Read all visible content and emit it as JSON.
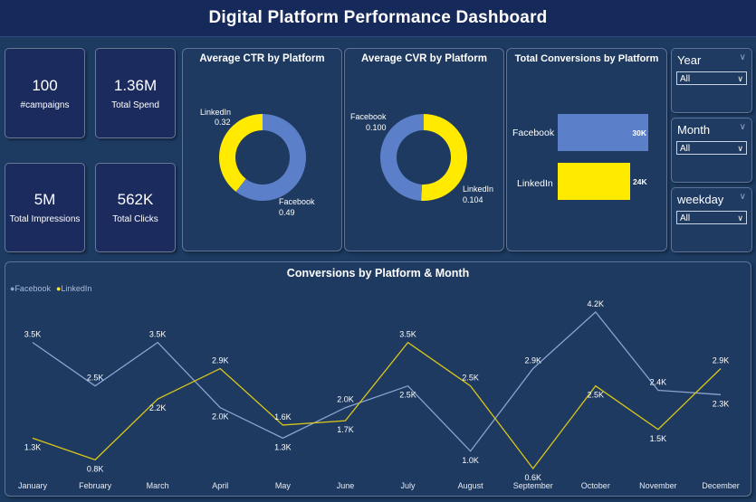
{
  "header": {
    "title": "Digital Platform Performance Dashboard"
  },
  "kpis": [
    {
      "value": "100",
      "label": "#campaigns"
    },
    {
      "value": "1.36M",
      "label": "Total Spend"
    },
    {
      "value": "5M",
      "label": "Total Impressions"
    },
    {
      "value": "562K",
      "label": "Total Clicks"
    }
  ],
  "ctr": {
    "title": "Average CTR by Platform",
    "linkedin_label": "LinkedIn",
    "linkedin_value": "0.32",
    "facebook_label": "Facebook",
    "facebook_value": "0.49"
  },
  "cvr": {
    "title": "Average CVR by Platform",
    "facebook_label": "Facebook",
    "facebook_value": "0.100",
    "linkedin_label": "LinkedIn",
    "linkedin_value": "0.104"
  },
  "conversions": {
    "title": "Total Conversions by Platform",
    "facebook_label": "Facebook",
    "facebook_value": "30K",
    "linkedin_label": "LinkedIn",
    "linkedin_value": "24K"
  },
  "slicers": [
    {
      "title": "Year",
      "value": "All"
    },
    {
      "title": "Month",
      "value": "All"
    },
    {
      "title": "weekday",
      "value": "All"
    }
  ],
  "line_chart": {
    "title": "Conversions by Platform & Month",
    "legend": [
      "Facebook",
      "LinkedIn"
    ]
  },
  "colors": {
    "facebook": "#5b7fc8",
    "facebook_line": "#8aa3cf",
    "linkedin": "#ffea00",
    "linkedin_line": "#d9c61a"
  },
  "chart_data": [
    {
      "type": "pie",
      "title": "Average CTR by Platform",
      "categories": [
        "Facebook",
        "LinkedIn"
      ],
      "values": [
        0.49,
        0.32
      ]
    },
    {
      "type": "pie",
      "title": "Average CVR by Platform",
      "categories": [
        "Facebook",
        "LinkedIn"
      ],
      "values": [
        0.1,
        0.104
      ]
    },
    {
      "type": "bar",
      "title": "Total Conversions by Platform",
      "categories": [
        "Facebook",
        "LinkedIn"
      ],
      "values": [
        30000,
        24000
      ]
    },
    {
      "type": "line",
      "title": "Conversions by Platform & Month",
      "categories": [
        "January",
        "February",
        "March",
        "April",
        "May",
        "June",
        "July",
        "August",
        "September",
        "October",
        "November",
        "December"
      ],
      "series": [
        {
          "name": "Facebook",
          "values": [
            3500,
            2500,
            3500,
            2000,
            1300,
            2000,
            2500,
            1000,
            2900,
            4200,
            2400,
            2300
          ],
          "labels": [
            "3.5K",
            "2.5K",
            "3.5K",
            "2.0K",
            "1.3K",
            "2.0K",
            "2.5K",
            "1.0K",
            "2.9K",
            "4.2K",
            "2.4K",
            "2.3K"
          ]
        },
        {
          "name": "LinkedIn",
          "values": [
            1300,
            800,
            2200,
            2900,
            1600,
            1700,
            3500,
            2500,
            600,
            2500,
            1500,
            2900
          ],
          "labels": [
            "1.3K",
            "0.8K",
            "2.2K",
            "2.9K",
            "1.6K",
            "1.7K",
            "3.5K",
            "2.5K",
            "0.6K",
            "2.5K",
            "1.5K",
            "2.9K"
          ]
        }
      ]
    }
  ]
}
